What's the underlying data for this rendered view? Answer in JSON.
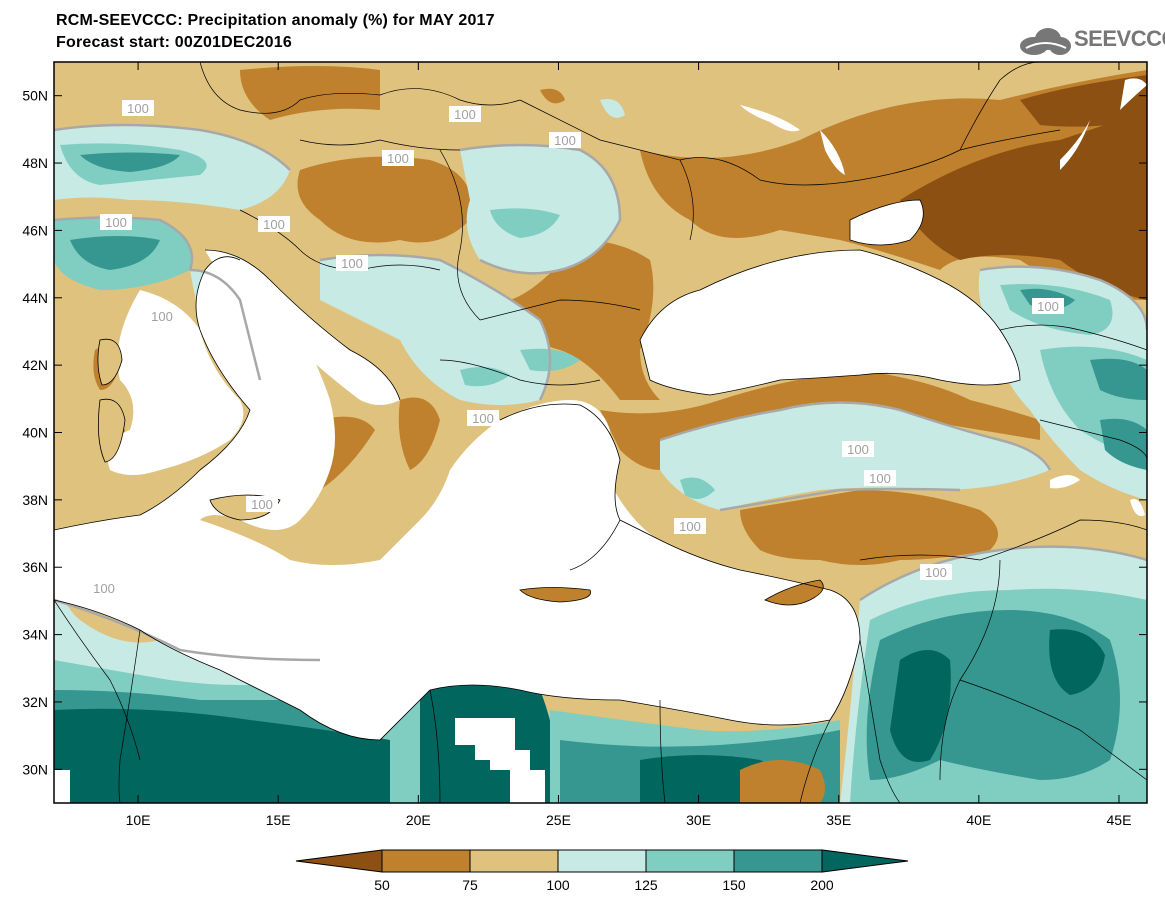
{
  "header": {
    "title_line1": "RCM-SEEVCCC: Precipitation anomaly (%) for MAY 2017",
    "title_line2": "Forecast start: 00Z01DEC2016",
    "logo_text": "SEEVCCC",
    "logo_icon": "cloud-logo-icon"
  },
  "map": {
    "lon_range": [
      7,
      46
    ],
    "lat_range": [
      29,
      51
    ],
    "lon_ticks": [
      "10E",
      "15E",
      "20E",
      "25E",
      "30E",
      "35E",
      "40E",
      "45E"
    ],
    "lat_ticks": [
      "30N",
      "32N",
      "34N",
      "36N",
      "38N",
      "40N",
      "42N",
      "44N",
      "46N",
      "48N",
      "50N"
    ],
    "contour_labels": [
      "100",
      "100",
      "100",
      "100",
      "100",
      "100",
      "100",
      "100",
      "100",
      "100",
      "100",
      "100",
      "100",
      "100",
      "100",
      "100"
    ]
  },
  "colorbar": {
    "labels": [
      "50",
      "75",
      "100",
      "125",
      "150",
      "200"
    ],
    "colors": [
      "#8c5012",
      "#bf812d",
      "#dfc27d",
      "#c7eae5",
      "#80cdc1",
      "#35978f",
      "#01665e"
    ]
  }
}
